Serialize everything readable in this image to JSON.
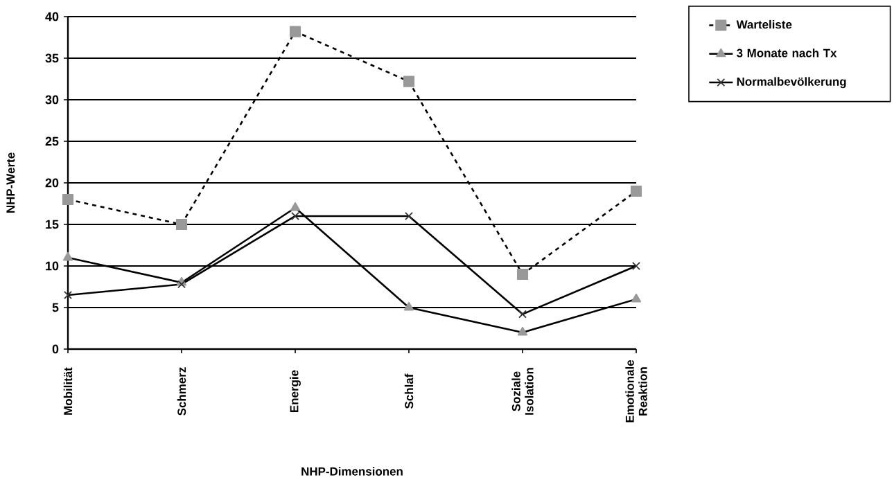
{
  "chart_data": {
    "type": "line",
    "xlabel": "NHP-Dimensionen",
    "ylabel": "NHP-Werte",
    "categories": [
      "Mobilität",
      "Schmerz",
      "Energie",
      "Schlaf",
      "Soziale Isolation",
      "Emotionale Reaktion"
    ],
    "series": [
      {
        "name": "Warteliste",
        "color": "#999999",
        "marker": "square",
        "line_style": "dashed",
        "values": [
          18,
          15,
          38.2,
          32.2,
          9,
          19
        ]
      },
      {
        "name": "3 Monate nach Tx",
        "color": "#999999",
        "marker": "triangle",
        "line_style": "solid",
        "values": [
          11,
          8,
          17,
          5,
          2,
          6
        ]
      },
      {
        "name": "Normalbevölkerung",
        "color": "#333333",
        "marker": "cross",
        "line_style": "solid",
        "values": [
          6.5,
          7.8,
          16,
          16,
          4.2,
          10
        ]
      }
    ],
    "ylim": [
      0,
      40
    ],
    "yticks": [
      0,
      5,
      10,
      15,
      20,
      25,
      30,
      35,
      40
    ],
    "grid": "y",
    "legend": "top right"
  }
}
